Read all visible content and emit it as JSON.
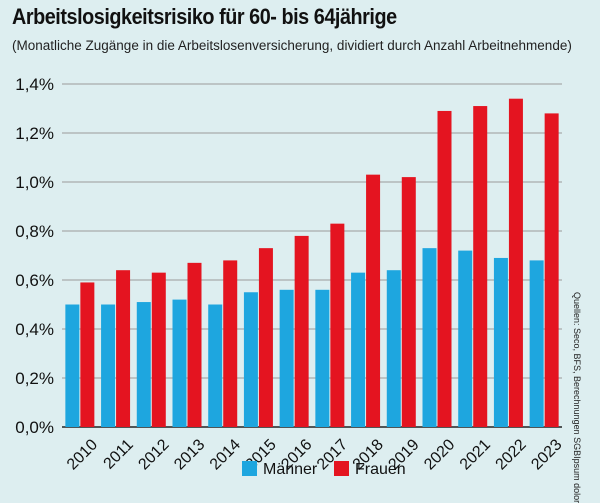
{
  "title": "Arbeitslosigkeitsrisiko für 60- bis 64jährige",
  "subtitle": "(Monatliche Zugänge in die Arbeitslosenversicherung, dividiert durch Anzahl Arbeitnehmende)",
  "source": "Quellen: Seco, BFS, Berechnungen SGBIpsum dolor",
  "chart_data": {
    "type": "bar",
    "categories": [
      "2010",
      "2011",
      "2012",
      "2013",
      "2014",
      "2015",
      "2016",
      "2017",
      "2018",
      "2019",
      "2020",
      "2021",
      "2022",
      "2023"
    ],
    "series": [
      {
        "name": "Männer",
        "color": "#1ea6df",
        "values": [
          0.5,
          0.5,
          0.51,
          0.52,
          0.5,
          0.55,
          0.56,
          0.56,
          0.63,
          0.64,
          0.73,
          0.72,
          0.69,
          0.68
        ]
      },
      {
        "name": "Frauen",
        "color": "#e41420",
        "values": [
          0.59,
          0.64,
          0.63,
          0.67,
          0.68,
          0.73,
          0.78,
          0.83,
          1.03,
          1.02,
          1.29,
          1.31,
          1.34,
          1.28
        ]
      }
    ],
    "ylim": [
      0,
      1.4
    ],
    "yticks": [
      0,
      0.2,
      0.4,
      0.6,
      0.8,
      1.0,
      1.2,
      1.4
    ],
    "ytick_labels": [
      "0,0%",
      "0,2%",
      "0,4%",
      "0,6%",
      "0,8%",
      "1,0%",
      "1,2%",
      "1,4%"
    ],
    "grid": true,
    "legend_position": "bottom-center"
  }
}
